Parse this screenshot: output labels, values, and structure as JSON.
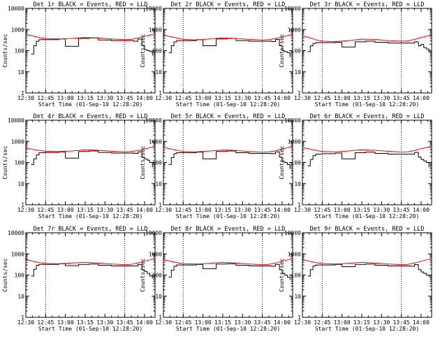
{
  "colors": {
    "events": "#000000",
    "lld": "#ff0000",
    "axes": "#000000",
    "background": "#ffffff"
  },
  "chart_data": {
    "type": "line",
    "layout": "3x3 grid",
    "y_scale": "log",
    "ylim": [
      1,
      10000
    ],
    "y_ticks": [
      "1",
      "10",
      "100",
      "1000",
      "10000"
    ],
    "x_ticks": [
      "12:30",
      "12:45",
      "13:00",
      "13:15",
      "13:30",
      "13:45",
      "14:00"
    ],
    "xlim": [
      "12:30",
      "14:08"
    ],
    "xlabel": "Start Time (01-Sep-10 12:28:20)",
    "ylabel": "Counts/sec",
    "dotted_lines_x": [
      "12:45",
      "13:45"
    ],
    "legend_text": "BLACK = Events, RED = LLD",
    "series_names": [
      "Events",
      "LLD"
    ],
    "panels": [
      {
        "title": "Det 1r BLACK = Events, RED = LLD",
        "series": [
          {
            "name": "Events",
            "x": [
              "12:34",
              "12:36",
              "12:38",
              "12:40",
              "12:45",
              "12:55",
              "13:00",
              "13:05",
              "13:10",
              "13:18",
              "13:25",
              "13:35",
              "13:45",
              "13:52",
              "13:55",
              "13:58",
              "14:00",
              "14:02",
              "14:04",
              "14:06"
            ],
            "y": [
              70,
              170,
              280,
              330,
              330,
              360,
              160,
              160,
              380,
              400,
              320,
              300,
              300,
              280,
              350,
              180,
              110,
              100,
              90,
              60
            ]
          },
          {
            "name": "LLD",
            "x": [
              "12:30",
              "12:35",
              "12:40",
              "12:45",
              "12:55",
              "13:05",
              "13:15",
              "13:25",
              "13:35",
              "13:45",
              "13:50",
              "13:55",
              "14:00",
              "14:05",
              "14:08"
            ],
            "y": [
              600,
              500,
              420,
              380,
              360,
              380,
              420,
              400,
              360,
              330,
              340,
              400,
              480,
              560,
              620
            ]
          }
        ]
      },
      {
        "title": "Det 2r BLACK = Events, RED = LLD",
        "series": [
          {
            "name": "Events",
            "x": [
              "12:34",
              "12:36",
              "12:38",
              "12:40",
              "12:45",
              "12:55",
              "13:00",
              "13:05",
              "13:10",
              "13:18",
              "13:25",
              "13:35",
              "13:45",
              "13:52",
              "13:55",
              "13:58",
              "14:00",
              "14:02",
              "14:04",
              "14:06"
            ],
            "y": [
              80,
              170,
              260,
              300,
              300,
              330,
              170,
              170,
              360,
              380,
              300,
              280,
              280,
              270,
              340,
              170,
              100,
              90,
              80,
              50
            ]
          },
          {
            "name": "LLD",
            "x": [
              "12:30",
              "12:35",
              "12:40",
              "12:45",
              "12:55",
              "13:05",
              "13:15",
              "13:25",
              "13:35",
              "13:45",
              "13:50",
              "13:55",
              "14:00",
              "14:05",
              "14:08"
            ],
            "y": [
              550,
              470,
              400,
              340,
              320,
              360,
              400,
              380,
              340,
              320,
              330,
              380,
              450,
              530,
              600
            ]
          }
        ]
      },
      {
        "title": "Det 3r BLACK = Events, RED = LLD",
        "series": [
          {
            "name": "Events",
            "x": [
              "12:34",
              "12:36",
              "12:38",
              "12:40",
              "12:45",
              "12:55",
              "13:00",
              "13:05",
              "13:10",
              "13:18",
              "13:25",
              "13:35",
              "13:45",
              "13:52",
              "13:55",
              "13:58",
              "14:00",
              "14:02",
              "14:04",
              "14:06"
            ],
            "y": [
              90,
              170,
              220,
              240,
              240,
              250,
              150,
              150,
              260,
              280,
              250,
              230,
              230,
              230,
              260,
              170,
              200,
              140,
              120,
              80
            ]
          },
          {
            "name": "LLD",
            "x": [
              "12:30",
              "12:35",
              "12:40",
              "12:45",
              "12:55",
              "13:05",
              "13:15",
              "13:25",
              "13:35",
              "13:45",
              "13:50",
              "13:55",
              "14:00",
              "14:05",
              "14:08"
            ],
            "y": [
              500,
              420,
              330,
              280,
              270,
              300,
              350,
              340,
              300,
              280,
              290,
              340,
              420,
              500,
              560
            ]
          }
        ]
      },
      {
        "title": "Det 4r BLACK = Events, RED = LLD",
        "series": [
          {
            "name": "Events",
            "x": [
              "12:34",
              "12:36",
              "12:38",
              "12:40",
              "12:45",
              "12:55",
              "13:00",
              "13:05",
              "13:10",
              "13:18",
              "13:25",
              "13:35",
              "13:45",
              "13:52",
              "13:55",
              "13:58",
              "14:00",
              "14:02",
              "14:04",
              "14:06"
            ],
            "y": [
              80,
              150,
              230,
              290,
              300,
              320,
              160,
              160,
              330,
              350,
              300,
              280,
              280,
              270,
              320,
              180,
              150,
              130,
              100,
              60
            ]
          },
          {
            "name": "LLD",
            "x": [
              "12:30",
              "12:35",
              "12:40",
              "12:45",
              "12:55",
              "13:05",
              "13:15",
              "13:25",
              "13:35",
              "13:45",
              "13:50",
              "13:55",
              "14:00",
              "14:05",
              "14:08"
            ],
            "y": [
              480,
              420,
              370,
              340,
              330,
              350,
              400,
              380,
              340,
              320,
              330,
              370,
              440,
              520,
              600
            ]
          }
        ]
      },
      {
        "title": "Det 5r BLACK = Events, RED = LLD",
        "series": [
          {
            "name": "Events",
            "x": [
              "12:34",
              "12:36",
              "12:38",
              "12:40",
              "12:45",
              "12:55",
              "13:00",
              "13:05",
              "13:10",
              "13:18",
              "13:25",
              "13:35",
              "13:45",
              "13:52",
              "13:55",
              "13:58",
              "14:00",
              "14:02",
              "14:04",
              "14:06"
            ],
            "y": [
              80,
              170,
              260,
              290,
              290,
              310,
              150,
              150,
              330,
              350,
              290,
              270,
              270,
              260,
              320,
              180,
              110,
              100,
              80,
              50
            ]
          },
          {
            "name": "LLD",
            "x": [
              "12:30",
              "12:35",
              "12:40",
              "12:45",
              "12:55",
              "13:05",
              "13:15",
              "13:25",
              "13:35",
              "13:45",
              "13:50",
              "13:55",
              "14:00",
              "14:05",
              "14:08"
            ],
            "y": [
              520,
              450,
              380,
              330,
              320,
              350,
              390,
              370,
              330,
              310,
              320,
              360,
              440,
              520,
              600
            ]
          }
        ]
      },
      {
        "title": "Det 6r BLACK = Events, RED = LLD",
        "series": [
          {
            "name": "Events",
            "x": [
              "12:34",
              "12:36",
              "12:38",
              "12:40",
              "12:45",
              "12:55",
              "13:00",
              "13:05",
              "13:10",
              "13:18",
              "13:25",
              "13:35",
              "13:45",
              "13:52",
              "13:55",
              "13:58",
              "14:00",
              "14:02",
              "14:04",
              "14:06"
            ],
            "y": [
              70,
              140,
              210,
              250,
              260,
              280,
              150,
              150,
              290,
              310,
              270,
              250,
              250,
              250,
              300,
              180,
              140,
              120,
              100,
              60
            ]
          },
          {
            "name": "LLD",
            "x": [
              "12:30",
              "12:35",
              "12:40",
              "12:45",
              "12:55",
              "13:05",
              "13:15",
              "13:25",
              "13:35",
              "13:45",
              "13:50",
              "13:55",
              "14:00",
              "14:05",
              "14:08"
            ],
            "y": [
              500,
              440,
              380,
              330,
              320,
              350,
              400,
              380,
              340,
              310,
              320,
              370,
              450,
              530,
              600
            ]
          }
        ]
      },
      {
        "title": "Det 7r BLACK = Events, RED = LLD",
        "series": [
          {
            "name": "Events",
            "x": [
              "12:34",
              "12:36",
              "12:38",
              "12:40",
              "12:45",
              "12:55",
              "13:00",
              "13:05",
              "13:10",
              "13:18",
              "13:25",
              "13:35",
              "13:45",
              "13:52",
              "13:55",
              "13:58",
              "14:00",
              "14:02",
              "14:04",
              "14:06"
            ],
            "y": [
              90,
              190,
              290,
              320,
              320,
              340,
              280,
              280,
              320,
              330,
              290,
              270,
              270,
              270,
              320,
              180,
              150,
              120,
              90,
              70
            ]
          },
          {
            "name": "LLD",
            "x": [
              "12:30",
              "12:35",
              "12:40",
              "12:45",
              "12:55",
              "13:05",
              "13:15",
              "13:25",
              "13:35",
              "13:45",
              "13:50",
              "13:55",
              "14:00",
              "14:05",
              "14:08"
            ],
            "y": [
              560,
              460,
              390,
              350,
              340,
              370,
              400,
              370,
              330,
              310,
              320,
              380,
              450,
              540,
              620
            ]
          }
        ]
      },
      {
        "title": "Det 8r BLACK = Events, RED = LLD",
        "series": [
          {
            "name": "Events",
            "x": [
              "12:34",
              "12:36",
              "12:38",
              "12:40",
              "12:45",
              "12:55",
              "13:00",
              "13:05",
              "13:10",
              "13:18",
              "13:25",
              "13:35",
              "13:45",
              "13:52",
              "13:55",
              "13:58",
              "14:00",
              "14:02",
              "14:04",
              "14:06"
            ],
            "y": [
              80,
              170,
              260,
              300,
              300,
              320,
              200,
              200,
              330,
              340,
              290,
              270,
              270,
              260,
              320,
              180,
              120,
              100,
              80,
              60
            ]
          },
          {
            "name": "LLD",
            "x": [
              "12:30",
              "12:35",
              "12:40",
              "12:45",
              "12:55",
              "13:05",
              "13:15",
              "13:25",
              "13:35",
              "13:45",
              "13:50",
              "13:55",
              "14:00",
              "14:05",
              "14:08"
            ],
            "y": [
              530,
              460,
              390,
              340,
              330,
              360,
              400,
              370,
              330,
              310,
              320,
              370,
              450,
              540,
              610
            ]
          }
        ]
      },
      {
        "title": "Det 9r BLACK = Events, RED = LLD",
        "series": [
          {
            "name": "Events",
            "x": [
              "12:34",
              "12:36",
              "12:38",
              "12:40",
              "12:45",
              "12:55",
              "13:00",
              "13:05",
              "13:10",
              "13:18",
              "13:25",
              "13:35",
              "13:45",
              "13:52",
              "13:55",
              "13:58",
              "14:00",
              "14:02",
              "14:04",
              "14:06"
            ],
            "y": [
              90,
              180,
              270,
              300,
              300,
              320,
              250,
              250,
              320,
              330,
              290,
              270,
              270,
              260,
              310,
              180,
              140,
              120,
              100,
              80
            ]
          },
          {
            "name": "LLD",
            "x": [
              "12:30",
              "12:35",
              "12:40",
              "12:45",
              "12:55",
              "13:05",
              "13:15",
              "13:25",
              "13:35",
              "13:45",
              "13:50",
              "13:55",
              "14:00",
              "14:05",
              "14:08"
            ],
            "y": [
              540,
              460,
              390,
              350,
              330,
              360,
              400,
              370,
              330,
              310,
              320,
              370,
              450,
              540,
              610
            ]
          }
        ]
      }
    ]
  }
}
